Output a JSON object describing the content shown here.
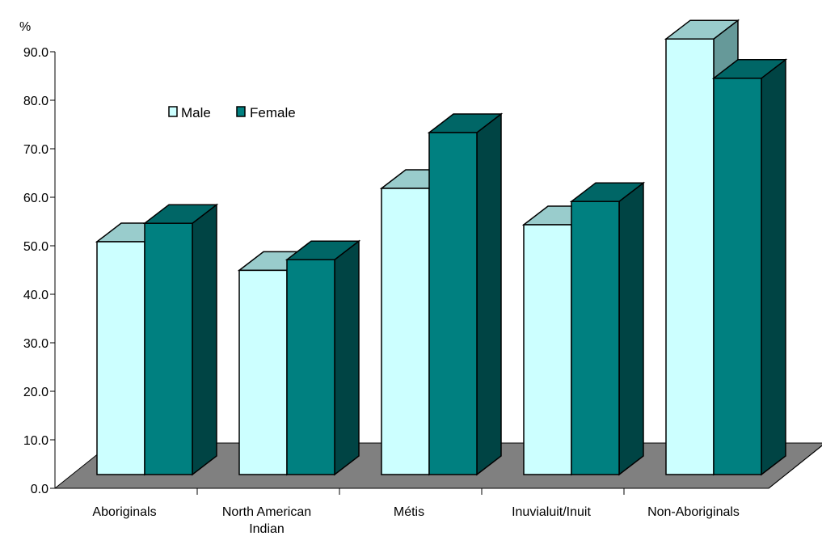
{
  "chart_data": {
    "type": "bar",
    "ylabel": "%",
    "ylim": [
      0,
      90
    ],
    "yticks": [
      "0.0",
      "10.0",
      "20.0",
      "30.0",
      "40.0",
      "50.0",
      "60.0",
      "70.0",
      "80.0",
      "90.0"
    ],
    "categories": [
      [
        "Aboriginals"
      ],
      [
        "North American",
        "Indian"
      ],
      [
        "Métis"
      ],
      [
        "Inuvialuit/Inuit"
      ],
      [
        "Non-Aboriginals"
      ]
    ],
    "series": [
      {
        "name": "Male",
        "values": [
          48.0,
          42.1,
          59.0,
          51.5,
          89.8
        ]
      },
      {
        "name": "Female",
        "values": [
          51.8,
          44.3,
          70.5,
          56.3,
          81.7
        ]
      }
    ],
    "legend": "top-left",
    "grid": false,
    "style": "3d-clustered-column",
    "colors": {
      "male_front": "#ccffff",
      "male_top": "#99cccc",
      "male_side": "#669999",
      "female_front": "#008080",
      "female_top": "#006666",
      "female_side": "#004444",
      "floor": "#808080"
    }
  }
}
